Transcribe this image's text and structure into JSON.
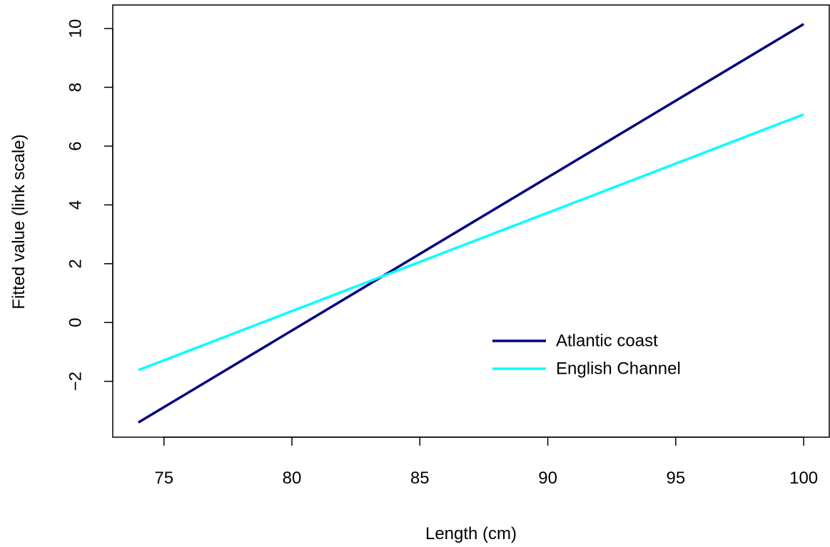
{
  "chart_data": {
    "type": "line",
    "title": "",
    "xlabel": "Length (cm)",
    "ylabel": "Fitted value (link scale)",
    "xlim": [
      73,
      101
    ],
    "ylim": [
      -3.9,
      10.8
    ],
    "x_ticks": [
      75,
      80,
      85,
      90,
      95,
      100
    ],
    "y_ticks": [
      -2,
      0,
      2,
      4,
      6,
      8,
      10
    ],
    "y_tick_labels": [
      "−2",
      "0",
      "2",
      "4",
      "6",
      "8",
      "10"
    ],
    "grid": false,
    "legend_position": "bottom-right",
    "series": [
      {
        "name": "Atlantic coast",
        "color": "#000080",
        "x": [
          74,
          100
        ],
        "y": [
          -3.4,
          10.15
        ]
      },
      {
        "name": "English Channel",
        "color": "#00FFFF",
        "x": [
          74,
          100
        ],
        "y": [
          -1.62,
          7.08
        ]
      }
    ]
  }
}
